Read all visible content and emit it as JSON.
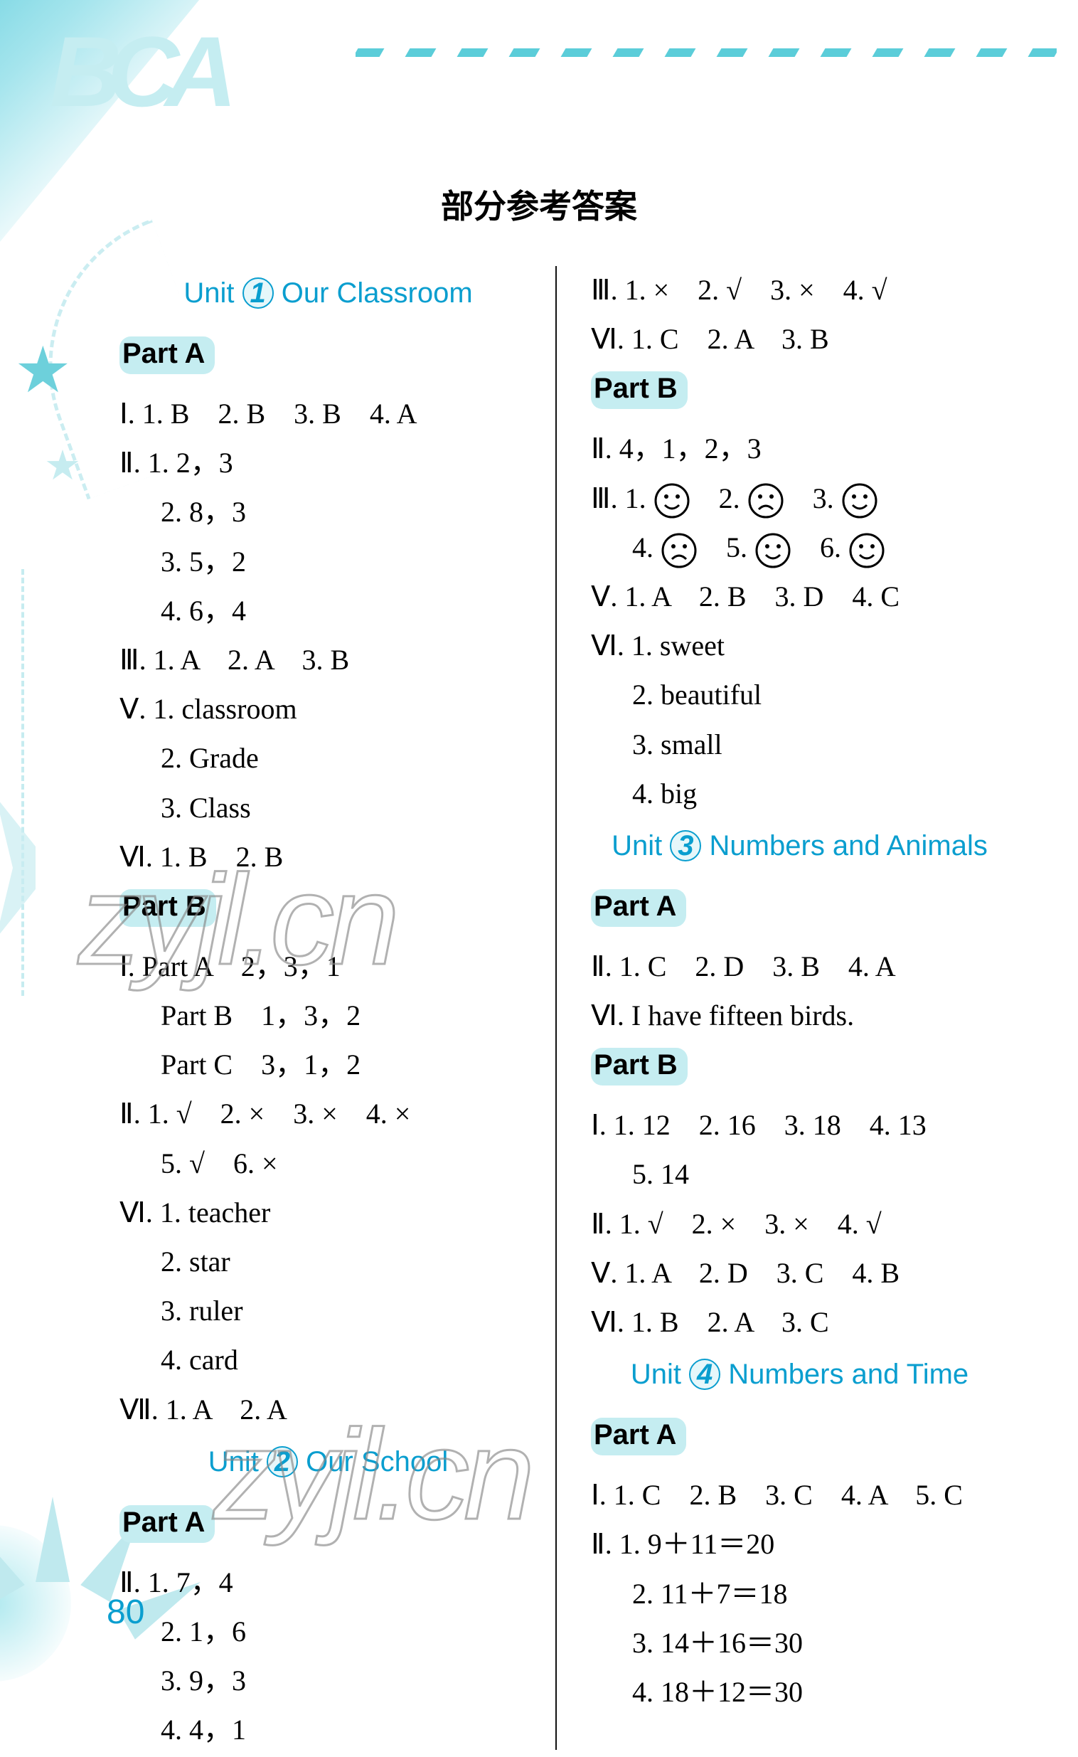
{
  "title": "部分参考答案",
  "page_number": "80",
  "watermark_text": "zyjl.cn",
  "colors": {
    "accent": "#0a9ecf",
    "highlight_bg": "#c5edf1",
    "decor": "#88dbe6",
    "text": "#000000"
  },
  "left": {
    "unit1": {
      "label_pre": "Unit",
      "num": "1",
      "label_post": "Our Classroom"
    },
    "u1_partA": "Part A",
    "u1a_I": "Ⅰ. 1. B　2. B　3. B　4. A",
    "u1a_II_1": "Ⅱ. 1. 2，3",
    "u1a_II_2": "2. 8，3",
    "u1a_II_3": "3. 5，2",
    "u1a_II_4": "4. 6，4",
    "u1a_III": "Ⅲ. 1. A　2. A　3. B",
    "u1a_V_1": "Ⅴ. 1. classroom",
    "u1a_V_2": "2. Grade",
    "u1a_V_3": "3. Class",
    "u1a_VI": "Ⅵ. 1. B　2. B",
    "u1_partB": "Part B",
    "u1b_I_1": "Ⅰ. Part A　2，3，1",
    "u1b_I_2": "Part B　1，3，2",
    "u1b_I_3": "Part C　3，1，2",
    "u1b_II_1": "Ⅱ. 1. √　2. ×　3. ×　4. ×",
    "u1b_II_2": "5. √　6. ×",
    "u1b_VI_1": "Ⅵ. 1. teacher",
    "u1b_VI_2": "2. star",
    "u1b_VI_3": "3. ruler",
    "u1b_VI_4": "4. card",
    "u1b_VII": "Ⅶ. 1. A　2. A",
    "unit2": {
      "label_pre": "Unit",
      "num": "2",
      "label_post": "Our School"
    },
    "u2_partA": "Part A",
    "u2a_II_1": "Ⅱ. 1. 7，4",
    "u2a_II_2": "2. 1，6",
    "u2a_II_3": "3. 9，3",
    "u2a_II_4": "4. 4，1"
  },
  "right": {
    "u2a_III": "Ⅲ. 1. ×　2. √　3. ×　4. √",
    "u2a_VI": "Ⅵ. 1. C　2. A　3. B",
    "u2_partB": "Part B",
    "u2b_II": "Ⅱ. 4，1，2，3",
    "u2b_III_pre": "Ⅲ. 1. ",
    "u2b_III_faces_row1": [
      {
        "n": "1.",
        "mood": "happy"
      },
      {
        "n": "2.",
        "mood": "sad"
      },
      {
        "n": "3.",
        "mood": "happy"
      }
    ],
    "u2b_III_faces_row2": [
      {
        "n": "4.",
        "mood": "sad"
      },
      {
        "n": "5.",
        "mood": "happy"
      },
      {
        "n": "6.",
        "mood": "happy"
      }
    ],
    "u2b_V": "Ⅴ. 1. A　2. B　3. D　4. C",
    "u2b_VI_1": "Ⅵ. 1. sweet",
    "u2b_VI_2": "2. beautiful",
    "u2b_VI_3": "3. small",
    "u2b_VI_4": "4. big",
    "unit3": {
      "label_pre": "Unit",
      "num": "3",
      "label_post": "Numbers and Animals"
    },
    "u3_partA": "Part A",
    "u3a_II": "Ⅱ. 1. C　2. D　3. B　4. A",
    "u3a_VI": "Ⅵ. I have fifteen birds.",
    "u3_partB": "Part B",
    "u3b_I_1": "Ⅰ. 1. 12　2. 16　3. 18　4. 13",
    "u3b_I_2": "5. 14",
    "u3b_II": "Ⅱ. 1. √　2. ×　3. ×　4. √",
    "u3b_V": "Ⅴ. 1. A　2. D　3. C　4. B",
    "u3b_VI": "Ⅵ. 1. B　2. A　3. C",
    "unit4": {
      "label_pre": "Unit",
      "num": "4",
      "label_post": "Numbers and Time"
    },
    "u4_partA": "Part A",
    "u4a_I": "Ⅰ. 1. C　2. B　3. C　4. A　5. C",
    "u4a_II_1": "Ⅱ. 1. 9＋11＝20",
    "u4a_II_2": "2. 11＋7＝18",
    "u4a_II_3": "3. 14＋16＝30",
    "u4a_II_4": "4. 18＋12＝30"
  }
}
